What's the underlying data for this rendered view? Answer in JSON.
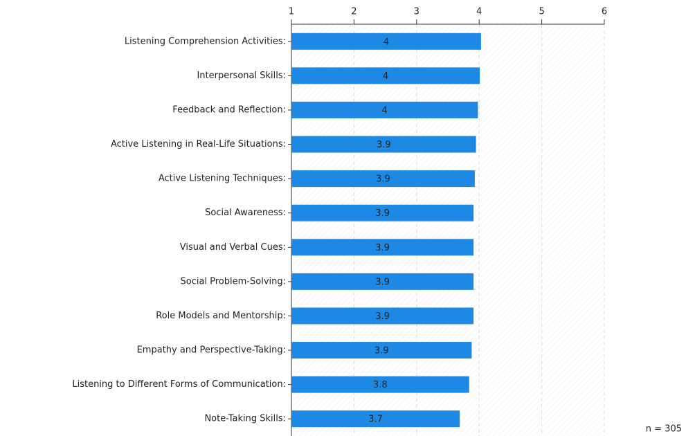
{
  "chart_data": {
    "type": "bar",
    "orientation": "horizontal",
    "categories": [
      "Listening Comprehension Activities:",
      "Interpersonal Skills:",
      "Feedback and Reflection:",
      "Active Listening in Real-Life Situations:",
      "Active Listening Techniques:",
      "Social Awareness:",
      "Visual and Verbal Cues:",
      "Social Problem-Solving:",
      "Role Models and Mentorship:",
      "Empathy and Perspective-Taking:",
      "Listening to Different Forms of Communication:",
      "Note-Taking Skills:"
    ],
    "values": [
      4.03,
      4.01,
      3.98,
      3.95,
      3.93,
      3.91,
      3.91,
      3.91,
      3.91,
      3.88,
      3.84,
      3.69
    ],
    "value_labels": [
      "4",
      "4",
      "4",
      "3.9",
      "3.9",
      "3.9",
      "3.9",
      "3.9",
      "3.9",
      "3.9",
      "3.8",
      "3.7"
    ],
    "color": "#1e88e5",
    "xlim": [
      1,
      6
    ],
    "xticks": [
      1,
      2,
      3,
      4,
      5,
      6
    ],
    "grid": true,
    "annotation": "n = 305"
  }
}
